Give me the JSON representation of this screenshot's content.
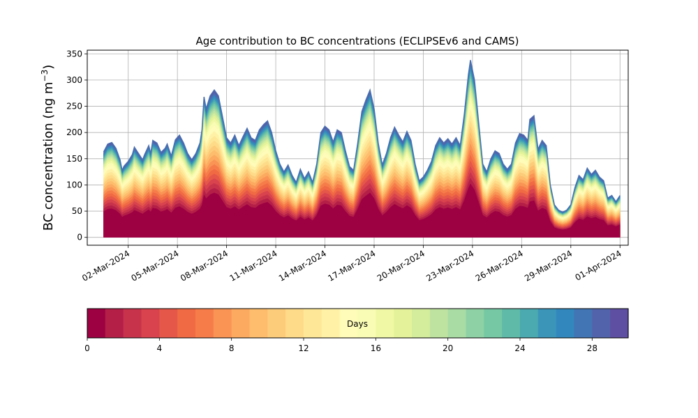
{
  "chart_data": {
    "type": "area",
    "title": "Age contribution to BC concentrations (ECLIPSEv6 and CAMS)",
    "ylabel": "BC concentration (ng m",
    "ylabel_sup": "−3",
    "ylabel_close": ")",
    "xlabel": "",
    "ylim": [
      -15,
      357
    ],
    "yticks": [
      0,
      50,
      100,
      150,
      200,
      250,
      300,
      350
    ],
    "xlim": [
      "2024-02-28T12:00",
      "2024-04-01T12:00"
    ],
    "x_start": "2024-02-29T12:00",
    "x_end": "2024-04-01T00:00",
    "xticks": [
      "02-Mar-2024",
      "05-Mar-2024",
      "08-Mar-2024",
      "11-Mar-2024",
      "14-Mar-2024",
      "17-Mar-2024",
      "20-Mar-2024",
      "23-Mar-2024",
      "26-Mar-2024",
      "29-Mar-2024",
      "01-Apr-2024"
    ],
    "grid": true,
    "series_total": [
      [
        "2024-02-29T12:00",
        163
      ],
      [
        "2024-02-29T18:00",
        178
      ],
      [
        "2024-03-01T00:00",
        181
      ],
      [
        "2024-03-01T06:00",
        170
      ],
      [
        "2024-03-01T12:00",
        148
      ],
      [
        "2024-03-01T15:00",
        128
      ],
      [
        "2024-03-01T18:00",
        136
      ],
      [
        "2024-03-02T00:00",
        145
      ],
      [
        "2024-03-02T06:00",
        158
      ],
      [
        "2024-03-02T09:00",
        172
      ],
      [
        "2024-03-02T15:00",
        160
      ],
      [
        "2024-03-02T21:00",
        148
      ],
      [
        "2024-03-03T00:00",
        158
      ],
      [
        "2024-03-03T06:00",
        175
      ],
      [
        "2024-03-03T09:00",
        160
      ],
      [
        "2024-03-03T12:00",
        185
      ],
      [
        "2024-03-03T18:00",
        180
      ],
      [
        "2024-03-04T00:00",
        162
      ],
      [
        "2024-03-04T06:00",
        170
      ],
      [
        "2024-03-04T09:00",
        178
      ],
      [
        "2024-03-04T15:00",
        155
      ],
      [
        "2024-03-04T21:00",
        186
      ],
      [
        "2024-03-05T03:00",
        195
      ],
      [
        "2024-03-05T09:00",
        180
      ],
      [
        "2024-03-05T15:00",
        160
      ],
      [
        "2024-03-05T21:00",
        148
      ],
      [
        "2024-03-06T03:00",
        160
      ],
      [
        "2024-03-06T09:00",
        180
      ],
      [
        "2024-03-06T12:00",
        205
      ],
      [
        "2024-03-06T15:00",
        268
      ],
      [
        "2024-03-06T18:00",
        245
      ],
      [
        "2024-03-07T00:00",
        270
      ],
      [
        "2024-03-07T06:00",
        281
      ],
      [
        "2024-03-07T12:00",
        270
      ],
      [
        "2024-03-07T18:00",
        230
      ],
      [
        "2024-03-08T00:00",
        190
      ],
      [
        "2024-03-08T06:00",
        180
      ],
      [
        "2024-03-08T12:00",
        195
      ],
      [
        "2024-03-08T18:00",
        175
      ],
      [
        "2024-03-09T00:00",
        192
      ],
      [
        "2024-03-09T06:00",
        208
      ],
      [
        "2024-03-09T12:00",
        190
      ],
      [
        "2024-03-09T18:00",
        185
      ],
      [
        "2024-03-10T00:00",
        205
      ],
      [
        "2024-03-10T06:00",
        215
      ],
      [
        "2024-03-10T12:00",
        222
      ],
      [
        "2024-03-10T18:00",
        200
      ],
      [
        "2024-03-11T00:00",
        165
      ],
      [
        "2024-03-11T06:00",
        140
      ],
      [
        "2024-03-11T12:00",
        125
      ],
      [
        "2024-03-11T18:00",
        138
      ],
      [
        "2024-03-12T00:00",
        118
      ],
      [
        "2024-03-12T06:00",
        105
      ],
      [
        "2024-03-12T12:00",
        130
      ],
      [
        "2024-03-12T18:00",
        112
      ],
      [
        "2024-03-13T00:00",
        125
      ],
      [
        "2024-03-13T06:00",
        105
      ],
      [
        "2024-03-13T12:00",
        140
      ],
      [
        "2024-03-13T18:00",
        200
      ],
      [
        "2024-03-14T00:00",
        212
      ],
      [
        "2024-03-14T06:00",
        205
      ],
      [
        "2024-03-14T12:00",
        182
      ],
      [
        "2024-03-14T18:00",
        205
      ],
      [
        "2024-03-15T00:00",
        200
      ],
      [
        "2024-03-15T06:00",
        165
      ],
      [
        "2024-03-15T12:00",
        135
      ],
      [
        "2024-03-15T18:00",
        128
      ],
      [
        "2024-03-16T00:00",
        180
      ],
      [
        "2024-03-16T06:00",
        240
      ],
      [
        "2024-03-16T12:00",
        262
      ],
      [
        "2024-03-16T18:00",
        281
      ],
      [
        "2024-03-17T00:00",
        245
      ],
      [
        "2024-03-17T06:00",
        180
      ],
      [
        "2024-03-17T12:00",
        138
      ],
      [
        "2024-03-17T18:00",
        160
      ],
      [
        "2024-03-18T00:00",
        190
      ],
      [
        "2024-03-18T06:00",
        210
      ],
      [
        "2024-03-18T12:00",
        195
      ],
      [
        "2024-03-18T18:00",
        182
      ],
      [
        "2024-03-19T00:00",
        202
      ],
      [
        "2024-03-19T06:00",
        185
      ],
      [
        "2024-03-19T12:00",
        140
      ],
      [
        "2024-03-19T18:00",
        108
      ],
      [
        "2024-03-20T00:00",
        115
      ],
      [
        "2024-03-20T06:00",
        128
      ],
      [
        "2024-03-20T12:00",
        145
      ],
      [
        "2024-03-20T18:00",
        175
      ],
      [
        "2024-03-21T00:00",
        190
      ],
      [
        "2024-03-21T06:00",
        180
      ],
      [
        "2024-03-21T12:00",
        188
      ],
      [
        "2024-03-21T18:00",
        178
      ],
      [
        "2024-03-22T00:00",
        190
      ],
      [
        "2024-03-22T06:00",
        175
      ],
      [
        "2024-03-22T12:00",
        235
      ],
      [
        "2024-03-22T18:00",
        310
      ],
      [
        "2024-03-22T21:00",
        338
      ],
      [
        "2024-03-23T03:00",
        300
      ],
      [
        "2024-03-23T09:00",
        220
      ],
      [
        "2024-03-23T15:00",
        140
      ],
      [
        "2024-03-23T21:00",
        125
      ],
      [
        "2024-03-24T03:00",
        150
      ],
      [
        "2024-03-24T09:00",
        165
      ],
      [
        "2024-03-24T15:00",
        160
      ],
      [
        "2024-03-24T21:00",
        140
      ],
      [
        "2024-03-25T03:00",
        130
      ],
      [
        "2024-03-25T09:00",
        140
      ],
      [
        "2024-03-25T15:00",
        180
      ],
      [
        "2024-03-25T21:00",
        198
      ],
      [
        "2024-03-26T03:00",
        195
      ],
      [
        "2024-03-26T09:00",
        185
      ],
      [
        "2024-03-26T12:00",
        225
      ],
      [
        "2024-03-26T18:00",
        232
      ],
      [
        "2024-03-27T00:00",
        168
      ],
      [
        "2024-03-27T06:00",
        185
      ],
      [
        "2024-03-27T12:00",
        175
      ],
      [
        "2024-03-27T18:00",
        100
      ],
      [
        "2024-03-28T00:00",
        62
      ],
      [
        "2024-03-28T06:00",
        52
      ],
      [
        "2024-03-28T12:00",
        48
      ],
      [
        "2024-03-28T18:00",
        52
      ],
      [
        "2024-03-29T00:00",
        62
      ],
      [
        "2024-03-29T06:00",
        95
      ],
      [
        "2024-03-29T12:00",
        118
      ],
      [
        "2024-03-29T18:00",
        110
      ],
      [
        "2024-03-30T00:00",
        132
      ],
      [
        "2024-03-30T06:00",
        120
      ],
      [
        "2024-03-30T12:00",
        128
      ],
      [
        "2024-03-30T18:00",
        115
      ],
      [
        "2024-03-31T00:00",
        108
      ],
      [
        "2024-03-31T06:00",
        75
      ],
      [
        "2024-03-31T12:00",
        80
      ],
      [
        "2024-03-31T18:00",
        68
      ],
      [
        "2024-04-01T00:00",
        80
      ]
    ],
    "colorbar": {
      "label": "Days",
      "ticks": [
        0,
        4,
        8,
        12,
        16,
        20,
        24,
        28
      ],
      "bins": 30,
      "colors": [
        "#9e0142",
        "#b41f48",
        "#c8334c",
        "#d8434d",
        "#e55749",
        "#f06a44",
        "#f67d4a",
        "#f99455",
        "#fcaa5f",
        "#fdbd6c",
        "#fdcc7a",
        "#fedb88",
        "#fee797",
        "#fff2a7",
        "#fffbb8",
        "#f9fcb4",
        "#f0f8a6",
        "#e4f399",
        "#d3ed9c",
        "#beE3a0",
        "#a9dba4",
        "#8ed1a4",
        "#76c8a5",
        "#5fbaa7",
        "#4ba9b0",
        "#3b95b8",
        "#3288bd",
        "#4275b4",
        "#5263ab",
        "#5e4fa2"
      ]
    }
  }
}
